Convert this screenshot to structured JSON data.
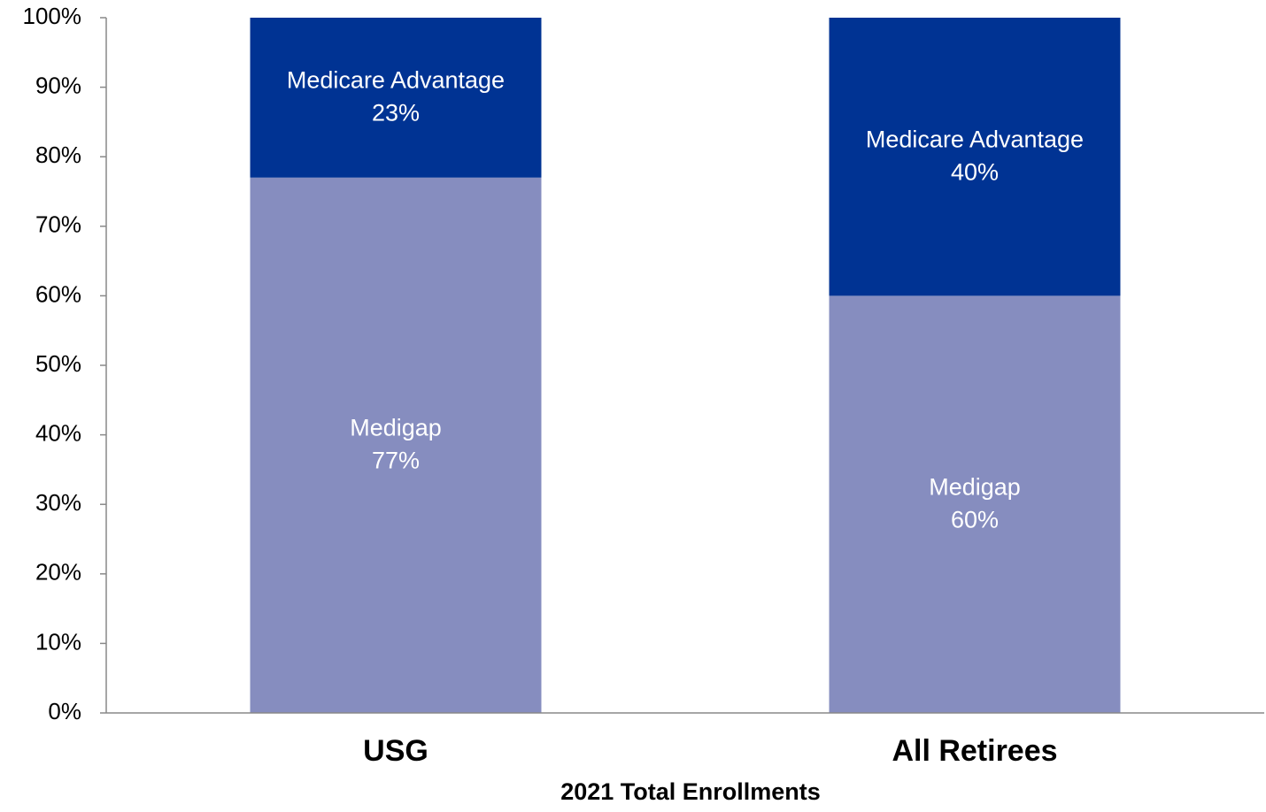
{
  "chart_data": {
    "type": "stacked_bar",
    "x_label": "2021 Total Enrollments",
    "categories": [
      "USG",
      "All Retirees"
    ],
    "series": [
      {
        "name": "Medigap",
        "color": "#868dbf",
        "values": [
          77,
          60
        ],
        "value_labels": [
          "77%",
          "60%"
        ]
      },
      {
        "name": "Medicare Advantage",
        "color": "#003393",
        "values": [
          23,
          40
        ],
        "value_labels": [
          "23%",
          "40%"
        ]
      }
    ],
    "ylim": [
      0,
      100
    ],
    "yticks": [
      {
        "value": 0,
        "label": "0%"
      },
      {
        "value": 10,
        "label": "10%"
      },
      {
        "value": 20,
        "label": "20%"
      },
      {
        "value": 30,
        "label": "30%"
      },
      {
        "value": 40,
        "label": "40%"
      },
      {
        "value": 50,
        "label": "50%"
      },
      {
        "value": 60,
        "label": "60%"
      },
      {
        "value": 70,
        "label": "70%"
      },
      {
        "value": 80,
        "label": "80%"
      },
      {
        "value": 90,
        "label": "90%"
      },
      {
        "value": 100,
        "label": "100%"
      }
    ],
    "grid": false
  }
}
